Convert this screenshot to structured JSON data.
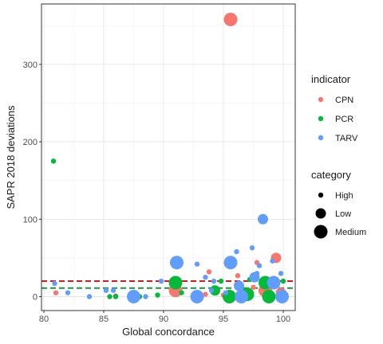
{
  "chart_data": {
    "type": "scatter",
    "xlabel": "Global concordance",
    "ylabel": "SAPR 2018 deviations",
    "xlim": [
      79.8,
      101
    ],
    "ylim": [
      -18,
      378
    ],
    "x_ticks": [
      80,
      85,
      90,
      95,
      100
    ],
    "y_ticks": [
      0,
      100,
      200,
      300
    ],
    "grid": true,
    "legend_position": "right",
    "hlines": [
      {
        "y": 20,
        "color": "#d7191c",
        "style": "dashed"
      },
      {
        "y": 11,
        "color": "#1a9641",
        "style": "dashed"
      }
    ],
    "indicator_legend": {
      "title": "indicator",
      "items": [
        {
          "label": "CPN",
          "color": "#F8766D"
        },
        {
          "label": "PCR",
          "color": "#00BA38"
        },
        {
          "label": "TARV",
          "color": "#619CFF"
        }
      ]
    },
    "category_legend": {
      "title": "category",
      "items": [
        {
          "label": "High",
          "size": "small"
        },
        {
          "label": "Low",
          "size": "medium"
        },
        {
          "label": "Medium",
          "size": "large"
        }
      ]
    },
    "series": [
      {
        "name": "CPN",
        "color": "#F8766D",
        "points": [
          {
            "x": 95.6,
            "y": 358,
            "category": "Medium"
          },
          {
            "x": 99.4,
            "y": 50,
            "category": "Low"
          },
          {
            "x": 97.8,
            "y": 44,
            "category": "High"
          },
          {
            "x": 96.2,
            "y": 27,
            "category": "High"
          },
          {
            "x": 93.8,
            "y": 32,
            "category": "High"
          },
          {
            "x": 98.5,
            "y": 8,
            "category": "Medium"
          },
          {
            "x": 91.0,
            "y": 8,
            "category": "Medium"
          },
          {
            "x": 99.8,
            "y": 5,
            "category": "Low"
          },
          {
            "x": 97.0,
            "y": 5,
            "category": "Low"
          },
          {
            "x": 81.0,
            "y": 5,
            "category": "High"
          },
          {
            "x": 93.5,
            "y": 3,
            "category": "High"
          },
          {
            "x": 95.0,
            "y": 2,
            "category": "High"
          },
          {
            "x": 86.0,
            "y": 1,
            "category": "High"
          },
          {
            "x": 97.5,
            "y": 12,
            "category": "High"
          }
        ]
      },
      {
        "name": "PCR",
        "color": "#00BA38",
        "points": [
          {
            "x": 80.8,
            "y": 175,
            "category": "High"
          },
          {
            "x": 91.0,
            "y": 18,
            "category": "Medium"
          },
          {
            "x": 98.5,
            "y": 18,
            "category": "Medium"
          },
          {
            "x": 94.3,
            "y": 8,
            "category": "Low"
          },
          {
            "x": 92.7,
            "y": 5,
            "category": "High"
          },
          {
            "x": 91.5,
            "y": 5,
            "category": "High"
          },
          {
            "x": 95.5,
            "y": 0,
            "category": "Medium"
          },
          {
            "x": 97.0,
            "y": 3,
            "category": "Medium"
          },
          {
            "x": 98.8,
            "y": 0,
            "category": "Medium"
          },
          {
            "x": 89.5,
            "y": 2,
            "category": "High"
          },
          {
            "x": 85.5,
            "y": 0,
            "category": "High"
          },
          {
            "x": 86.0,
            "y": 0,
            "category": "High"
          },
          {
            "x": 88.0,
            "y": 0,
            "category": "High"
          },
          {
            "x": 93.0,
            "y": 0,
            "category": "High"
          },
          {
            "x": 94.8,
            "y": 20,
            "category": "High"
          },
          {
            "x": 96.3,
            "y": 10,
            "category": "High"
          },
          {
            "x": 97.2,
            "y": 22,
            "category": "High"
          },
          {
            "x": 99.5,
            "y": 15,
            "category": "High"
          },
          {
            "x": 100.0,
            "y": 20,
            "category": "High"
          }
        ]
      },
      {
        "name": "TARV",
        "color": "#619CFF",
        "points": [
          {
            "x": 98.3,
            "y": 100,
            "category": "Low"
          },
          {
            "x": 97.4,
            "y": 63,
            "category": "High"
          },
          {
            "x": 96.1,
            "y": 58,
            "category": "High"
          },
          {
            "x": 91.1,
            "y": 44,
            "category": "Medium"
          },
          {
            "x": 95.6,
            "y": 44,
            "category": "Medium"
          },
          {
            "x": 99.1,
            "y": 46,
            "category": "High"
          },
          {
            "x": 92.8,
            "y": 42,
            "category": "High"
          },
          {
            "x": 97.8,
            "y": 30,
            "category": "High"
          },
          {
            "x": 99.8,
            "y": 30,
            "category": "High"
          },
          {
            "x": 97.6,
            "y": 25,
            "category": "Low"
          },
          {
            "x": 94.2,
            "y": 20,
            "category": "High"
          },
          {
            "x": 93.5,
            "y": 25,
            "category": "High"
          },
          {
            "x": 89.8,
            "y": 20,
            "category": "High"
          },
          {
            "x": 80.9,
            "y": 17,
            "category": "High"
          },
          {
            "x": 99.2,
            "y": 18,
            "category": "Medium"
          },
          {
            "x": 96.3,
            "y": 14,
            "category": "Low"
          },
          {
            "x": 82.0,
            "y": 5,
            "category": "High"
          },
          {
            "x": 83.8,
            "y": 0,
            "category": "High"
          },
          {
            "x": 85.2,
            "y": 8,
            "category": "High"
          },
          {
            "x": 85.8,
            "y": 8,
            "category": "High"
          },
          {
            "x": 87.5,
            "y": 0,
            "category": "Medium"
          },
          {
            "x": 88.5,
            "y": 0,
            "category": "High"
          },
          {
            "x": 92.8,
            "y": 0,
            "category": "Medium"
          },
          {
            "x": 96.5,
            "y": 0,
            "category": "Medium"
          },
          {
            "x": 99.9,
            "y": 0,
            "category": "Medium"
          },
          {
            "x": 95.2,
            "y": 5,
            "category": "High"
          },
          {
            "x": 94.0,
            "y": 8,
            "category": "High"
          },
          {
            "x": 98.0,
            "y": 40,
            "category": "High"
          }
        ]
      }
    ]
  }
}
